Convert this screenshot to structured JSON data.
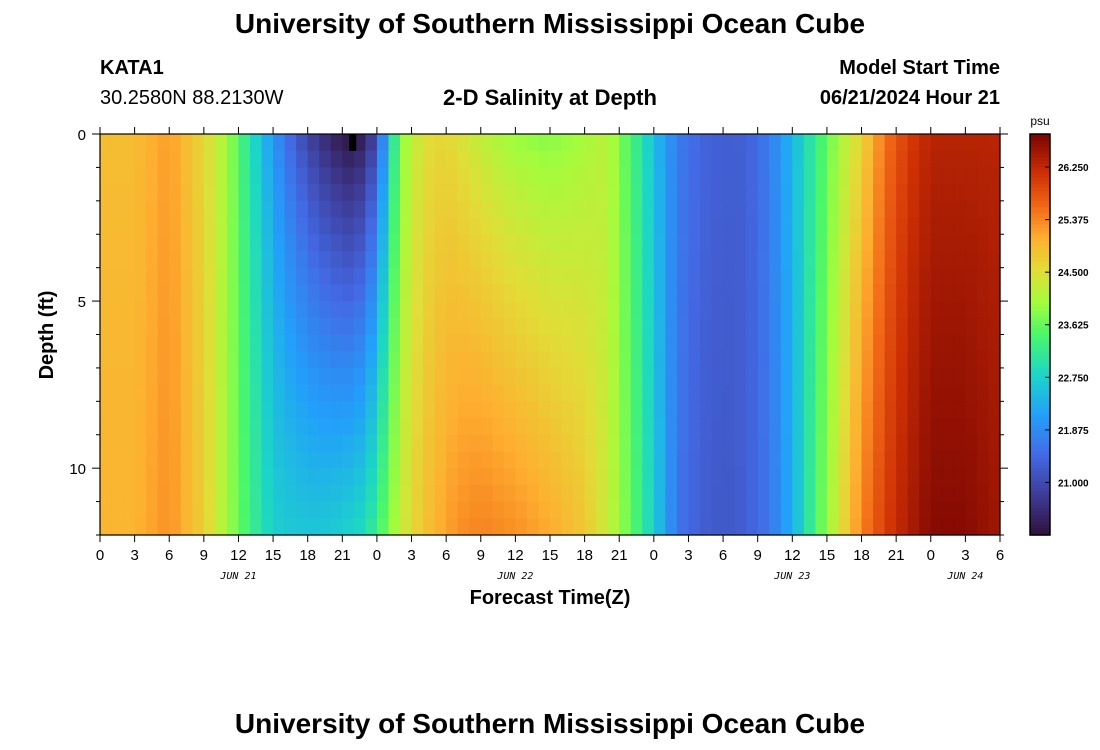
{
  "page": {
    "title": "University of Southern Mississippi Ocean Cube",
    "station_id": "KATA1",
    "station_coords": "30.2580N  88.2130W",
    "plot_title": "2-D Salinity at Depth",
    "model_start_label": "Model Start Time",
    "model_start_value": "06/21/2024 Hour 21",
    "footer_title": "University of Southern Mississippi Ocean Cube"
  },
  "chart_data": {
    "type": "heatmap",
    "xlabel": "Forecast Time(Z)",
    "ylabel": "Depth (ft)",
    "x_hours": [
      0,
      3,
      6,
      9,
      12,
      15,
      18,
      21,
      24,
      27,
      30,
      33,
      36,
      39,
      42,
      45,
      48,
      51,
      54,
      57,
      60,
      63,
      66,
      69,
      72,
      75,
      78,
      81
    ],
    "x_tick_labels": [
      "0",
      "3",
      "6",
      "9",
      "12",
      "15",
      "18",
      "21",
      "0",
      "3",
      "6",
      "9",
      "12",
      "15",
      "18",
      "21",
      "0",
      "3",
      "6",
      "9",
      "12",
      "15",
      "18",
      "21",
      "0",
      "3",
      "6"
    ],
    "x_tick_hours": [
      0,
      3,
      6,
      9,
      12,
      15,
      18,
      21,
      24,
      27,
      30,
      33,
      36,
      39,
      42,
      45,
      48,
      51,
      54,
      57,
      60,
      63,
      66,
      69,
      72,
      75,
      78
    ],
    "date_labels": [
      {
        "text": "JUN 21",
        "hour": 12
      },
      {
        "text": "JUN 22",
        "hour": 36
      },
      {
        "text": "JUN 23",
        "hour": 60
      },
      {
        "text": "JUN 24",
        "hour": 75
      }
    ],
    "xlim": [
      0,
      78
    ],
    "y_tick_labels": [
      "0",
      "5",
      "10"
    ],
    "y_tick_values": [
      0,
      5,
      10
    ],
    "ylim": [
      0,
      12
    ],
    "depths": [
      0,
      0.5,
      1,
      1.5,
      2,
      2.5,
      3,
      3.5,
      4,
      4.5,
      5,
      5.5,
      6,
      6.5,
      7,
      7.5,
      8,
      8.5,
      9,
      9.5,
      10,
      10.5,
      11,
      11.5,
      12
    ],
    "colorbar": {
      "unit": "psu",
      "tick_values": [
        21.0,
        21.875,
        22.75,
        23.625,
        24.5,
        25.375,
        26.25
      ],
      "tick_labels": [
        "21.000",
        "21.875",
        "22.750",
        "23.625",
        "24.500",
        "25.375",
        "26.250"
      ],
      "range": [
        20.125,
        26.8
      ]
    },
    "surface_profile": [
      [
        0,
        24.9
      ],
      [
        3,
        24.9
      ],
      [
        6,
        25.2
      ],
      [
        9,
        24.6
      ],
      [
        11,
        24.0
      ],
      [
        13,
        23.0
      ],
      [
        15,
        22.0
      ],
      [
        17,
        21.2
      ],
      [
        19,
        20.6
      ],
      [
        21,
        20.2
      ],
      [
        22,
        20.1
      ],
      [
        23,
        20.4
      ],
      [
        24,
        21.0
      ],
      [
        25,
        22.5
      ],
      [
        26,
        23.8
      ],
      [
        28,
        24.5
      ],
      [
        30,
        24.6
      ],
      [
        33,
        24.2
      ],
      [
        36,
        23.9
      ],
      [
        39,
        23.8
      ],
      [
        42,
        24.0
      ],
      [
        44,
        24.2
      ],
      [
        45,
        23.8
      ],
      [
        47,
        23.0
      ],
      [
        48,
        22.5
      ],
      [
        50,
        21.7
      ],
      [
        52,
        21.4
      ],
      [
        54,
        21.3
      ],
      [
        56,
        21.3
      ],
      [
        58,
        21.7
      ],
      [
        60,
        22.4
      ],
      [
        62,
        23.2
      ],
      [
        64,
        24.0
      ],
      [
        66,
        24.6
      ],
      [
        68,
        25.5
      ],
      [
        70,
        26.0
      ],
      [
        72,
        26.3
      ],
      [
        75,
        26.3
      ],
      [
        78,
        26.3
      ]
    ],
    "bottom_profile": [
      [
        0,
        25.0
      ],
      [
        3,
        25.0
      ],
      [
        6,
        25.3
      ],
      [
        9,
        24.7
      ],
      [
        11,
        24.0
      ],
      [
        13,
        23.3
      ],
      [
        15,
        22.7
      ],
      [
        17,
        22.6
      ],
      [
        19,
        22.6
      ],
      [
        21,
        22.7
      ],
      [
        23,
        22.9
      ],
      [
        24,
        23.3
      ],
      [
        25,
        23.8
      ],
      [
        27,
        24.6
      ],
      [
        29,
        25.0
      ],
      [
        31,
        25.3
      ],
      [
        33,
        25.4
      ],
      [
        36,
        25.3
      ],
      [
        39,
        25.1
      ],
      [
        42,
        24.8
      ],
      [
        44,
        24.3
      ],
      [
        46,
        23.6
      ],
      [
        48,
        22.7
      ],
      [
        50,
        21.6
      ],
      [
        52,
        21.3
      ],
      [
        54,
        21.2
      ],
      [
        56,
        21.3
      ],
      [
        58,
        21.6
      ],
      [
        60,
        22.3
      ],
      [
        62,
        23.4
      ],
      [
        64,
        24.4
      ],
      [
        66,
        25.4
      ],
      [
        68,
        26.0
      ],
      [
        70,
        26.4
      ],
      [
        72,
        26.7
      ],
      [
        75,
        26.7
      ],
      [
        78,
        26.5
      ]
    ]
  }
}
